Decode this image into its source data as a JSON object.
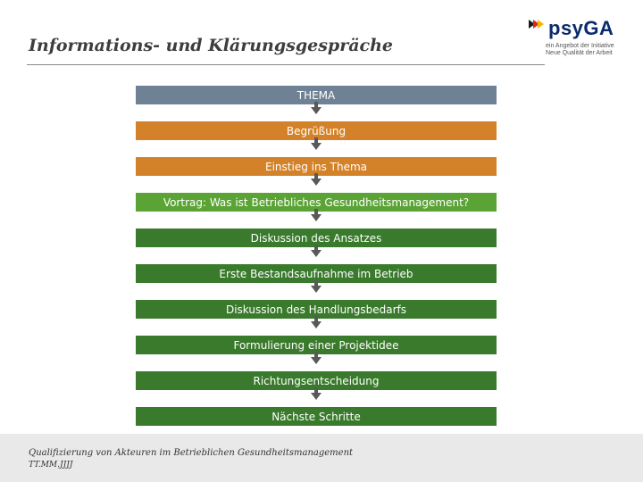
{
  "header": {
    "title": "Informations- und Klärungsgespräche"
  },
  "logo": {
    "name": "psyGA",
    "line1": "ein Angebot der Initiative",
    "line2": "Neue Qualität der Arbeit"
  },
  "flow": {
    "steps": [
      {
        "label": "THEMA",
        "color": "#6f8295"
      },
      {
        "label": "Begrüßung",
        "color": "#d4822a"
      },
      {
        "label": "Einstieg ins Thema",
        "color": "#d4822a"
      },
      {
        "label": "Vortrag: Was ist Betriebliches Gesundheitsmanagement?",
        "color": "#5ca336"
      },
      {
        "label": "Diskussion des Ansatzes",
        "color": "#3a7a2c"
      },
      {
        "label": "Erste Bestandsaufnahme im Betrieb",
        "color": "#3a7a2c"
      },
      {
        "label": "Diskussion des Handlungsbedarfs",
        "color": "#3a7a2c"
      },
      {
        "label": "Formulierung einer Projektidee",
        "color": "#3a7a2c"
      },
      {
        "label": "Richtungsentscheidung",
        "color": "#3a7a2c"
      },
      {
        "label": "Nächste Schritte",
        "color": "#3a7a2c"
      }
    ]
  },
  "footer": {
    "line1": "Qualifizierung von Akteuren im Betrieblichen Gesundheitsmanagement",
    "line2": "TT.MM.JJJJ"
  }
}
